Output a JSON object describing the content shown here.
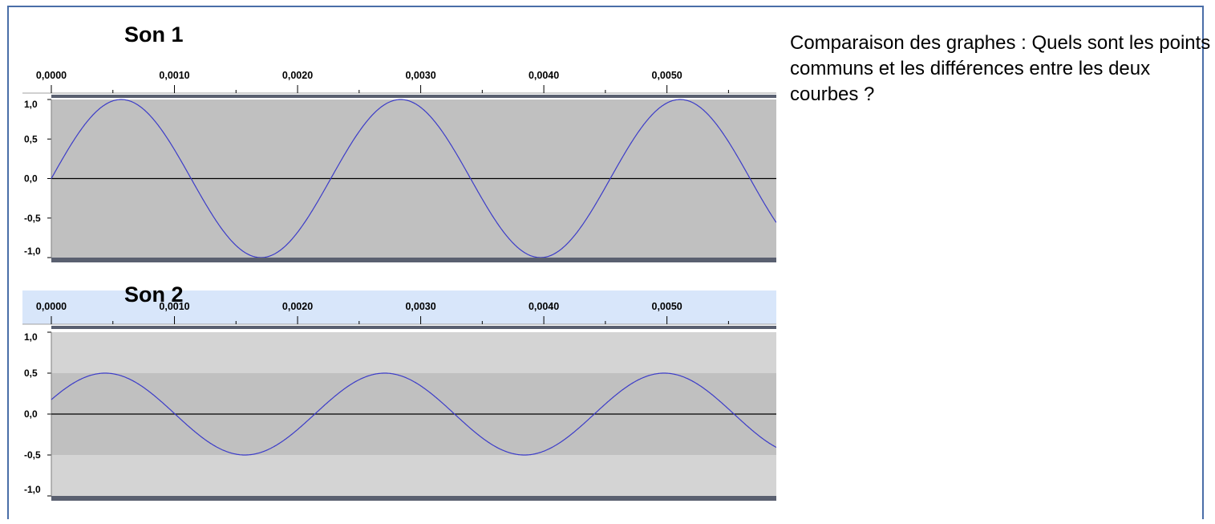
{
  "question": "Comparaison des graphes : Quels sont les points communs et les différences entre les deux courbes ?",
  "chart_data": [
    {
      "type": "line",
      "title": "Son 1",
      "x_ticks": [
        "0,0000",
        "0,0010",
        "0,0020",
        "0,0030",
        "0,0040",
        "0,0050"
      ],
      "y_ticks": [
        "1,0",
        "0,5",
        "0,0",
        "-0,5",
        "-1,0"
      ],
      "xlim": [
        0,
        0.0058
      ],
      "ylim": [
        -1,
        1
      ],
      "series": [
        {
          "amplitude": 1.0,
          "period": 0.00227,
          "phase_start": 0.0,
          "color": "#3c3cc8"
        }
      ],
      "colors": {
        "track": "#c0c0c0",
        "ruler": "#ffffff",
        "bar": "#5a6070"
      }
    },
    {
      "type": "line",
      "title": "Son 2",
      "x_ticks": [
        "0,0000",
        "0,0010",
        "0,0020",
        "0,0030",
        "0,0040",
        "0,0050"
      ],
      "y_ticks": [
        "1,0",
        "0,5",
        "0,0",
        "-0,5",
        "-1,0"
      ],
      "xlim": [
        0,
        0.0058
      ],
      "ylim": [
        -1,
        1
      ],
      "series": [
        {
          "amplitude": 0.5,
          "period": 0.00227,
          "phase_start": -0.00013,
          "color": "#3c3cc8"
        }
      ],
      "colors": {
        "track_outer": "#d4d4d4",
        "track": "#c0c0c0",
        "ruler": "#d8e6fa",
        "bar": "#5a6070"
      }
    }
  ]
}
